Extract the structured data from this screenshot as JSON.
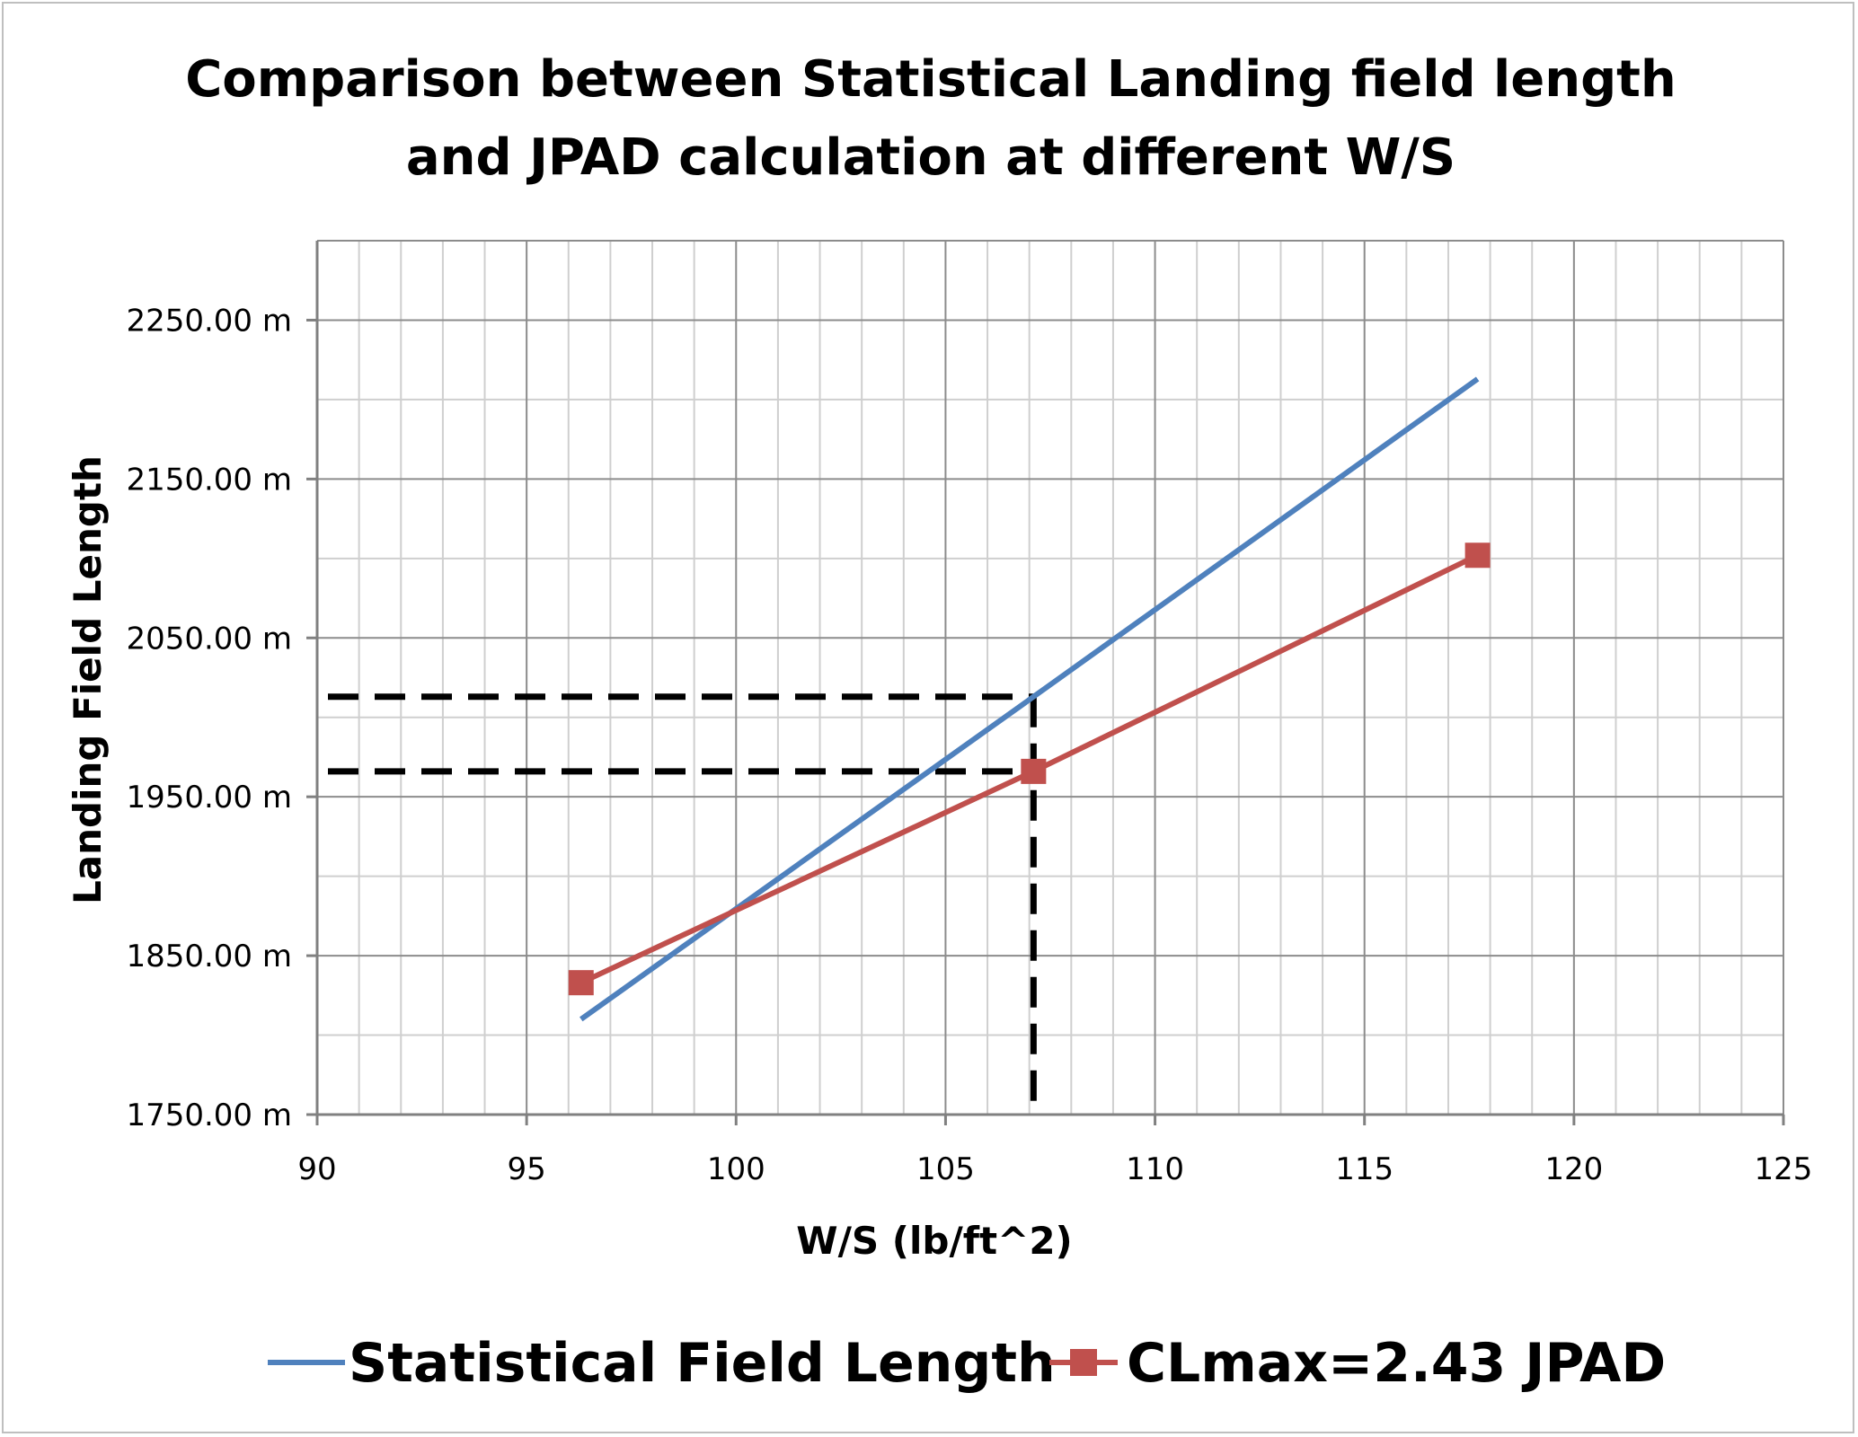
{
  "chart_data": {
    "type": "line",
    "title_lines": [
      "Comparison between Statistical Landing field length",
      "and JPAD calculation at different W/S"
    ],
    "xlabel": "W/S (lb/ft^2)",
    "ylabel": "Landing Field Length",
    "xlim": [
      90,
      125
    ],
    "ylim": [
      1750,
      2300
    ],
    "x_ticks": [
      90,
      95,
      100,
      105,
      110,
      115,
      120,
      125
    ],
    "x_tick_labels": [
      "90",
      "95",
      "100",
      "105",
      "110",
      "115",
      "120",
      "125"
    ],
    "y_ticks": [
      1750,
      1850,
      1950,
      2050,
      2150,
      2250
    ],
    "y_tick_labels": [
      "1750.00 m",
      "1850.00 m",
      "1950.00 m",
      "2050.00 m",
      "2150.00 m",
      "2250.00 m"
    ],
    "grid": true,
    "legend_position": "bottom",
    "series": [
      {
        "name": "Statistical Field Length",
        "color": "#4f81bd",
        "marker": "none",
        "x": [
          96.3,
          107.1,
          117.7
        ],
        "y": [
          1810,
          2013,
          2213
        ]
      },
      {
        "name": "CLmax=2.43 JPAD",
        "color": "#c0504d",
        "marker": "square",
        "x": [
          96.3,
          107.1,
          117.7
        ],
        "y": [
          1833,
          1966,
          2102
        ]
      }
    ],
    "annotations": [
      {
        "type": "dashed-guide",
        "x": 107.1,
        "y": 2013
      },
      {
        "type": "dashed-guide",
        "x": 107.1,
        "y": 1966
      }
    ]
  }
}
